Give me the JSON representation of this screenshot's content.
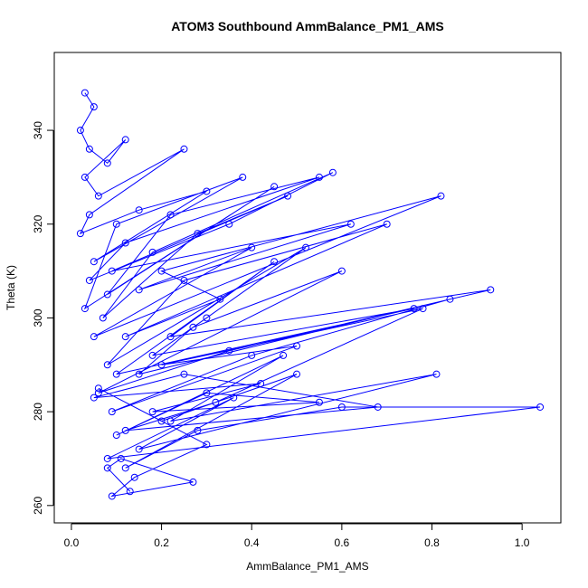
{
  "chart_data": {
    "type": "line",
    "title": "ATOM3 Southbound AmmBalance_PM1_AMS",
    "x_label": "AmmBalance_PM1_AMS",
    "y_label": "Theta (K)",
    "color": "#0000ff",
    "markers": true,
    "grid": false,
    "xlim": [
      -0.038,
      1.086
    ],
    "ylim": [
      256.3,
      356.6
    ],
    "xticks": [
      {
        "value": 0,
        "label": "0.0"
      },
      0.2,
      0.4,
      0.6,
      0.8,
      {
        "value": 1,
        "label": "1.0"
      }
    ],
    "yticks": [
      260,
      280,
      300,
      320,
      340
    ],
    "x": [
      0.03,
      0.05,
      0.02,
      0.04,
      0.08,
      0.12,
      0.03,
      0.06,
      0.25,
      0.04,
      0.02,
      0.15,
      0.3,
      0.05,
      0.38,
      0.1,
      0.03,
      0.45,
      0.08,
      0.22,
      0.55,
      0.12,
      0.04,
      0.35,
      0.58,
      0.18,
      0.07,
      0.28,
      0.48,
      0.09,
      0.62,
      0.15,
      0.4,
      0.05,
      0.82,
      0.2,
      0.33,
      0.12,
      0.7,
      0.25,
      0.08,
      0.52,
      0.3,
      0.18,
      0.76,
      0.1,
      0.45,
      0.22,
      0.93,
      0.35,
      0.06,
      0.6,
      0.27,
      0.15,
      0.84,
      0.4,
      0.09,
      0.5,
      0.2,
      0.78,
      0.32,
      0.12,
      0.68,
      0.25,
      0.05,
      0.42,
      0.18,
      0.55,
      0.3,
      0.1,
      0.47,
      0.22,
      0.81,
      0.15,
      0.36,
      0.08,
      1.04,
      0.6,
      0.28,
      0.12,
      0.5,
      0.2,
      0.06,
      0.3,
      0.14,
      0.09,
      0.27,
      0.11,
      0.08,
      0.13
    ],
    "values": [
      348,
      345,
      340,
      336,
      333,
      338,
      330,
      326,
      336,
      322,
      318,
      323,
      327,
      312,
      330,
      320,
      302,
      328,
      305,
      322,
      330,
      316,
      308,
      320,
      331,
      314,
      300,
      318,
      326,
      310,
      320,
      306,
      315,
      296,
      326,
      310,
      304,
      296,
      320,
      308,
      290,
      315,
      300,
      292,
      302,
      288,
      312,
      296,
      306,
      293,
      284,
      310,
      298,
      288,
      304,
      292,
      280,
      294,
      290,
      302,
      282,
      276,
      281,
      288,
      283,
      286,
      280,
      282,
      284,
      275,
      292,
      278,
      288,
      272,
      283,
      270,
      281,
      281,
      276,
      268,
      288,
      278,
      285,
      273,
      266,
      262,
      265,
      270,
      268,
      263
    ]
  }
}
